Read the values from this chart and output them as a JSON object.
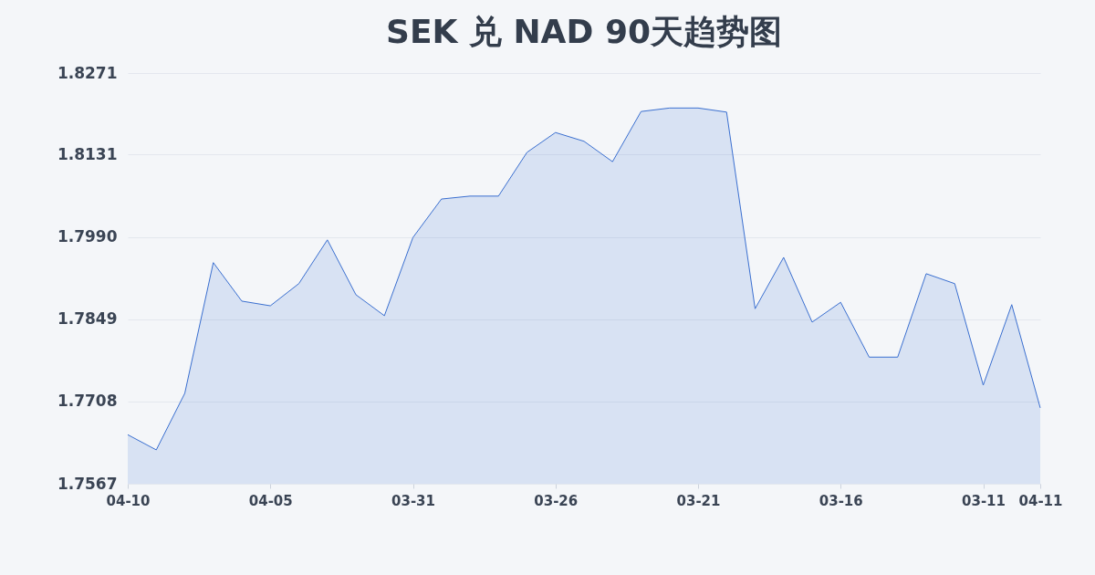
{
  "chart_data": {
    "type": "area",
    "title": "SEK 兑 NAD 90天趋势图",
    "categories": [
      "04-10",
      null,
      null,
      null,
      null,
      "04-05",
      null,
      null,
      null,
      null,
      "03-31",
      null,
      null,
      null,
      null,
      "03-26",
      null,
      null,
      null,
      null,
      "03-21",
      null,
      null,
      null,
      null,
      "03-16",
      null,
      null,
      null,
      null,
      "03-11",
      null,
      "04-11"
    ],
    "series": [
      {
        "color": "#3a6fd0",
        "values": [
          1.7651,
          1.7625,
          1.7722,
          1.7946,
          1.788,
          1.7872,
          1.791,
          1.7985,
          1.7891,
          1.7855,
          1.7989,
          1.8055,
          1.806,
          1.806,
          1.8135,
          1.8169,
          1.8154,
          1.8119,
          1.8205,
          1.8211,
          1.8211,
          1.8204,
          1.7867,
          1.7955,
          1.7844,
          1.7878,
          1.7784,
          1.7784,
          1.7927,
          1.791,
          1.7736,
          1.7874,
          1.7697
        ]
      }
    ],
    "ylim": [
      1.7567,
      1.8271
    ],
    "yticks": [
      1.7567,
      1.7708,
      1.7849,
      {
        "value": 1.799,
        "label": "1.7990"
      },
      1.8131,
      1.8271
    ],
    "grid": "y"
  }
}
